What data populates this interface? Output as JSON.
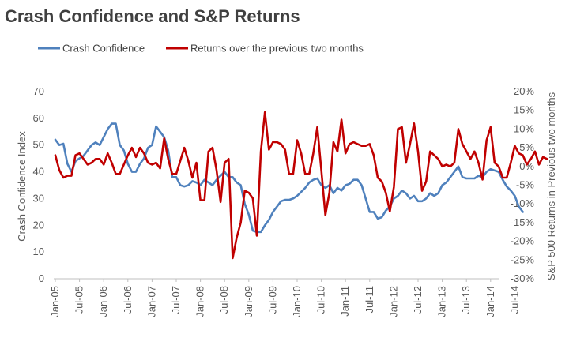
{
  "chart_data": {
    "type": "line",
    "title": "Crash Confidence and S&P Returns",
    "x_tick_labels": [
      "Jan-05",
      "Jul-05",
      "Jan-06",
      "Jul-06",
      "Jan-07",
      "Jul-07",
      "Jan-08",
      "Jul-08",
      "Jan-09",
      "Jul-09",
      "Jan-10",
      "Jul-10",
      "Jan-11",
      "Jul-11",
      "Jan-12",
      "Jul-12",
      "Jan-13",
      "Jul-13",
      "Jan-14",
      "Jul-14"
    ],
    "x_start": "Jan-05",
    "x_step": "monthly",
    "ylabel_left": "Crash Confidence Index",
    "ylabel_right": "S&P 500 Returns in Previous two months",
    "ylim_left": [
      0,
      70
    ],
    "ylim_right": [
      -30,
      20
    ],
    "y_ticks_left": [
      "0",
      "10",
      "20",
      "30",
      "40",
      "50",
      "60",
      "70"
    ],
    "y_ticks_right": [
      "-30%",
      "-25%",
      "-20%",
      "-15%",
      "-10%",
      "-5%",
      "0%",
      "5%",
      "10%",
      "15%",
      "20%"
    ],
    "legend_position": "top",
    "series": [
      {
        "name": "Crash Confidence",
        "axis": "left",
        "color": "#4F81BD",
        "values": [
          52,
          50,
          50.5,
          43,
          40,
          44,
          45,
          46,
          48,
          50,
          51,
          50,
          53,
          56,
          58,
          58,
          50,
          48,
          43,
          40,
          40,
          43,
          45,
          49,
          50,
          57,
          55,
          53,
          48,
          38,
          38,
          35,
          34.5,
          35,
          36.5,
          36,
          35,
          37,
          36,
          35,
          37,
          38.5,
          40,
          38,
          38,
          36,
          35,
          28,
          24,
          18,
          17.5,
          17.5,
          20,
          22,
          25,
          27,
          29,
          29.5,
          29.5,
          30,
          31,
          32.5,
          34,
          36,
          37,
          37.5,
          35,
          34,
          35,
          32,
          34,
          33,
          35,
          35.5,
          37,
          37,
          35,
          30,
          25,
          25,
          22.5,
          23,
          25.5,
          27,
          30,
          31,
          33,
          32,
          30,
          31,
          29,
          29,
          30,
          32,
          31,
          32,
          35,
          36,
          38,
          40,
          42,
          38,
          37.5,
          37.5,
          37.5,
          38.5,
          38,
          40,
          41,
          40.5,
          40,
          37,
          34.5,
          33,
          31,
          27,
          25
        ]
      },
      {
        "name": "Returns over the previous two months",
        "axis": "right",
        "color": "#C00000",
        "values": [
          3,
          -1,
          -3,
          -2.5,
          -2.5,
          3,
          3.5,
          2,
          0.5,
          1,
          2,
          2,
          0.5,
          3.5,
          1,
          -2,
          -2,
          0.5,
          3,
          5,
          2.5,
          5,
          3.5,
          1,
          0.5,
          1,
          -0.5,
          7.5,
          2,
          -2,
          -2,
          1.5,
          5,
          1.5,
          -3,
          1,
          -9,
          -9,
          4,
          5,
          -1,
          -9.5,
          1,
          2,
          -24.5,
          -19,
          -15,
          -6.5,
          -7,
          -8.5,
          -18.5,
          4,
          14.5,
          4.5,
          6.5,
          6.5,
          6,
          4.5,
          -2,
          -2,
          7,
          3.5,
          -2,
          -2,
          3.5,
          10.5,
          -1,
          -13,
          -7,
          6.5,
          4,
          12.5,
          3.5,
          6,
          6.5,
          6,
          5.5,
          5.5,
          6,
          3,
          -3,
          -4,
          -7,
          -12,
          -5.5,
          10,
          10.5,
          1,
          6,
          11.5,
          4,
          -6.5,
          -4,
          4,
          3,
          2,
          0,
          0.5,
          0,
          1,
          10,
          6,
          4,
          2,
          4,
          1,
          -3.5,
          7,
          10.5,
          1,
          0,
          -3,
          -3,
          1,
          5.5,
          3.5,
          3,
          0.5,
          2,
          4,
          0.5,
          2.5,
          2
        ]
      }
    ]
  }
}
